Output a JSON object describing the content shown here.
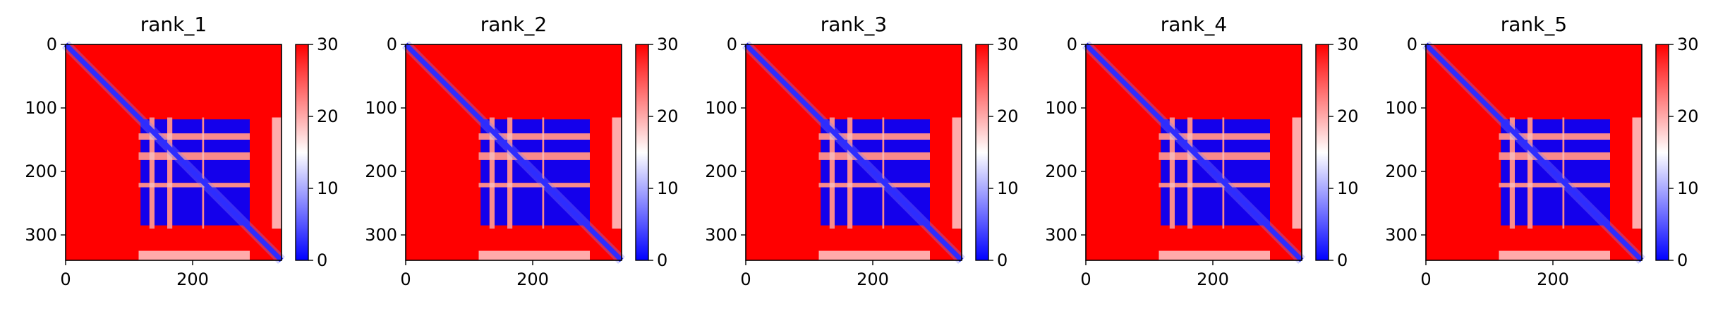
{
  "chart_data": [
    {
      "type": "heatmap",
      "title": "rank_1",
      "xlim": [
        0,
        340
      ],
      "ylim": [
        340,
        0
      ],
      "x_ticks": [
        "0",
        "200"
      ],
      "y_ticks": [
        "0",
        "100",
        "200",
        "300"
      ],
      "colorbar": {
        "ticks": [
          "0",
          "10",
          "20",
          "30"
        ],
        "range": [
          0,
          30
        ]
      }
    },
    {
      "type": "heatmap",
      "title": "rank_2",
      "xlim": [
        0,
        340
      ],
      "ylim": [
        340,
        0
      ],
      "x_ticks": [
        "0",
        "200"
      ],
      "y_ticks": [
        "0",
        "100",
        "200",
        "300"
      ],
      "colorbar": {
        "ticks": [
          "0",
          "10",
          "20",
          "30"
        ],
        "range": [
          0,
          30
        ]
      }
    },
    {
      "type": "heatmap",
      "title": "rank_3",
      "xlim": [
        0,
        340
      ],
      "ylim": [
        340,
        0
      ],
      "x_ticks": [
        "0",
        "200"
      ],
      "y_ticks": [
        "0",
        "100",
        "200",
        "300"
      ],
      "colorbar": {
        "ticks": [
          "0",
          "10",
          "20",
          "30"
        ],
        "range": [
          0,
          30
        ]
      }
    },
    {
      "type": "heatmap",
      "title": "rank_4",
      "xlim": [
        0,
        340
      ],
      "ylim": [
        340,
        0
      ],
      "x_ticks": [
        "0",
        "200"
      ],
      "y_ticks": [
        "0",
        "100",
        "200",
        "300"
      ],
      "colorbar": {
        "ticks": [
          "0",
          "10",
          "20",
          "30"
        ],
        "range": [
          0,
          30
        ]
      }
    },
    {
      "type": "heatmap",
      "title": "rank_5",
      "xlim": [
        0,
        340
      ],
      "ylim": [
        340,
        0
      ],
      "x_ticks": [
        "0",
        "200"
      ],
      "y_ticks": [
        "0",
        "100",
        "200",
        "300"
      ],
      "colorbar": {
        "ticks": [
          "0",
          "10",
          "20",
          "30"
        ],
        "range": [
          0,
          30
        ]
      }
    }
  ],
  "colormap": {
    "low": "#0000ff",
    "mid": "#ffffff",
    "high": "#ff0000"
  },
  "heatmap_structure": {
    "description_of_pattern": "",
    "domain_blocks": [
      [
        115,
        290
      ],
      [
        115,
        290
      ]
    ],
    "block_columns": [
      [
        118,
        132
      ],
      [
        140,
        160
      ],
      [
        168,
        215
      ],
      [
        218,
        290
      ]
    ],
    "block_rows": [
      [
        118,
        140
      ],
      [
        150,
        170
      ],
      [
        182,
        218
      ],
      [
        225,
        285
      ]
    ],
    "edge_strip": [
      [
        325,
        340
      ]
    ]
  }
}
